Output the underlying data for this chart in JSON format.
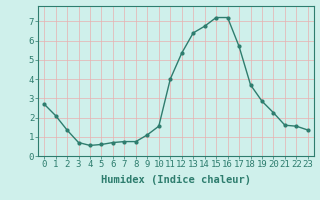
{
  "x": [
    0,
    1,
    2,
    3,
    4,
    5,
    6,
    7,
    8,
    9,
    10,
    11,
    12,
    13,
    14,
    15,
    16,
    17,
    18,
    19,
    20,
    21,
    22,
    23
  ],
  "y": [
    2.7,
    2.1,
    1.35,
    0.7,
    0.55,
    0.6,
    0.7,
    0.75,
    0.75,
    1.1,
    1.55,
    4.0,
    5.35,
    6.4,
    6.75,
    7.2,
    7.2,
    5.7,
    3.7,
    2.85,
    2.25,
    1.6,
    1.55,
    1.35
  ],
  "xlabel": "Humidex (Indice chaleur)",
  "ylim": [
    0,
    7.8
  ],
  "xlim": [
    -0.5,
    23.5
  ],
  "yticks": [
    0,
    1,
    2,
    3,
    4,
    5,
    6,
    7
  ],
  "xticks": [
    0,
    1,
    2,
    3,
    4,
    5,
    6,
    7,
    8,
    9,
    10,
    11,
    12,
    13,
    14,
    15,
    16,
    17,
    18,
    19,
    20,
    21,
    22,
    23
  ],
  "line_color": "#2e7d6e",
  "marker": "o",
  "marker_size": 2.0,
  "bg_color": "#cff0eb",
  "grid_color_major": "#e8b0b0",
  "grid_color_minor": "#c8e8e4",
  "axis_color": "#2e7d6e",
  "xlabel_fontsize": 7.5,
  "tick_fontsize": 6.5,
  "xlabel_color": "#2e7d6e"
}
